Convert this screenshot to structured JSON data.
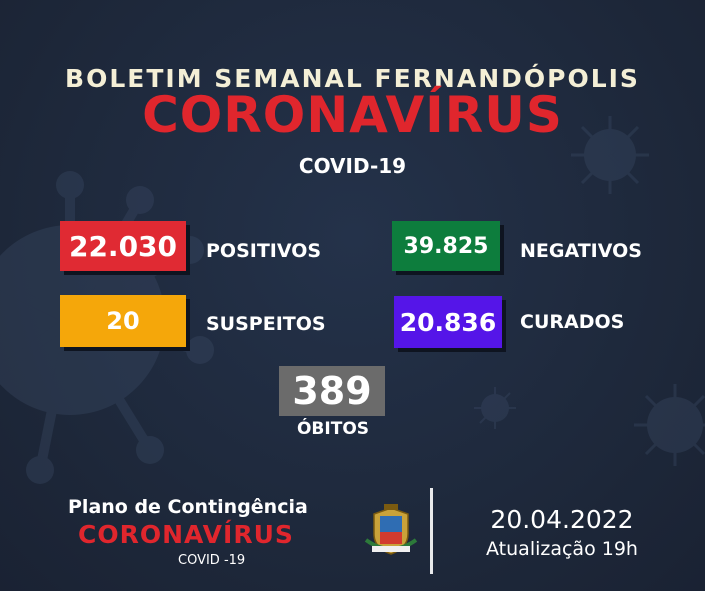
{
  "header": {
    "top_line": "BOLETIM SEMANAL FERNANDÓPOLIS",
    "main_title": "CORONAVÍRUS",
    "sub_title": "COVID-19"
  },
  "stats": {
    "positivos": {
      "value": "22.030",
      "label": "POSITIVOS",
      "color": "#e02a33"
    },
    "negativos": {
      "value": "39.825",
      "label": "NEGATIVOS",
      "color": "#0d7d3d"
    },
    "suspeitos": {
      "value": "20",
      "label": "SUSPEITOS",
      "color": "#f5a70a"
    },
    "curados": {
      "value": "20.836",
      "label": "CURADOS",
      "color": "#5515e8"
    },
    "obitos": {
      "value": "389",
      "label": "ÓBITOS",
      "color": "#6b6b6b"
    }
  },
  "footer": {
    "plan_title": "Plano de Contingência",
    "plan_name": "CORONAVÍRUS",
    "plan_sub": "COVID -19",
    "date": "20.04.2022",
    "update": "Atualização 19h"
  },
  "icons": [
    "virus-icon",
    "city-crest-icon"
  ]
}
